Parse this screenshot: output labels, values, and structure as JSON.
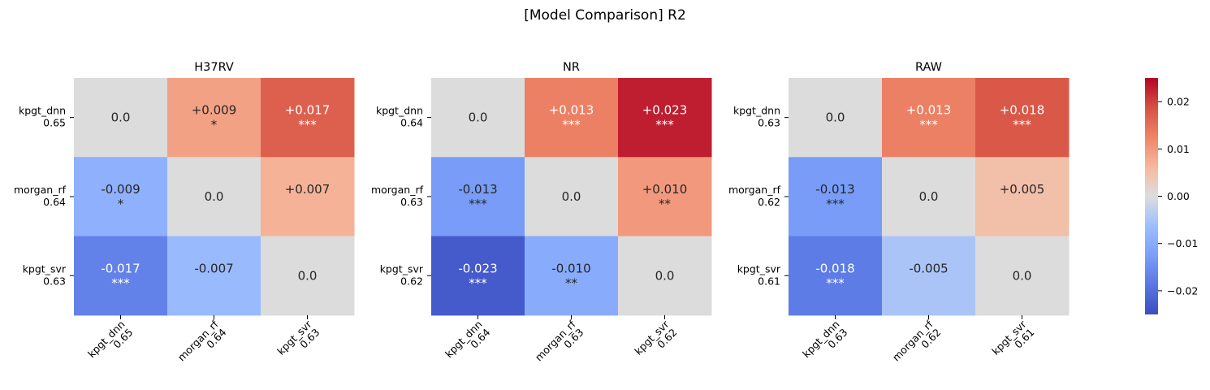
{
  "title": "[Model Comparison] R2",
  "chart_data": {
    "type": "heatmap",
    "colormap": "coolwarm",
    "vmin": -0.025,
    "vmax": 0.025,
    "colorbar_ticks": [
      "0.02",
      "0.01",
      "0.00",
      "−0.01",
      "−0.02"
    ],
    "colorbar_tick_values": [
      0.02,
      0.01,
      0.0,
      -0.01,
      -0.02
    ],
    "panels": [
      {
        "title": "H37RV",
        "row_labels": [
          [
            "kpgt_dnn",
            "0.65"
          ],
          [
            "morgan_rf",
            "0.64"
          ],
          [
            "kpgt_svr",
            "0.63"
          ]
        ],
        "col_labels": [
          [
            "kpgt_dnn",
            "0.65"
          ],
          [
            "morgan_rf",
            "0.64"
          ],
          [
            "kpgt_svr",
            "0.63"
          ]
        ],
        "values": [
          [
            0.0,
            0.009,
            0.017
          ],
          [
            -0.009,
            0.0,
            0.007
          ],
          [
            -0.017,
            -0.007,
            0.0
          ]
        ],
        "value_text": [
          [
            "0.0",
            "+0.009",
            "+0.017"
          ],
          [
            "-0.009",
            "0.0",
            "+0.007"
          ],
          [
            "-0.017",
            "-0.007",
            "0.0"
          ]
        ],
        "stars": [
          [
            "",
            "*",
            "***"
          ],
          [
            "*",
            "",
            ""
          ],
          [
            "***",
            "",
            ""
          ]
        ]
      },
      {
        "title": "NR",
        "row_labels": [
          [
            "kpgt_dnn",
            "0.64"
          ],
          [
            "morgan_rf",
            "0.63"
          ],
          [
            "kpgt_svr",
            "0.62"
          ]
        ],
        "col_labels": [
          [
            "kpgt_dnn",
            "0.64"
          ],
          [
            "morgan_rf",
            "0.63"
          ],
          [
            "kpgt_svr",
            "0.62"
          ]
        ],
        "values": [
          [
            0.0,
            0.013,
            0.023
          ],
          [
            -0.013,
            0.0,
            0.01
          ],
          [
            -0.023,
            -0.01,
            0.0
          ]
        ],
        "value_text": [
          [
            "0.0",
            "+0.013",
            "+0.023"
          ],
          [
            "-0.013",
            "0.0",
            "+0.010"
          ],
          [
            "-0.023",
            "-0.010",
            "0.0"
          ]
        ],
        "stars": [
          [
            "",
            "***",
            "***"
          ],
          [
            "***",
            "",
            "**"
          ],
          [
            "***",
            "**",
            ""
          ]
        ]
      },
      {
        "title": "RAW",
        "row_labels": [
          [
            "kpgt_dnn",
            "0.63"
          ],
          [
            "morgan_rf",
            "0.62"
          ],
          [
            "kpgt_svr",
            "0.61"
          ]
        ],
        "col_labels": [
          [
            "kpgt_dnn",
            "0.63"
          ],
          [
            "morgan_rf",
            "0.62"
          ],
          [
            "kpgt_svr",
            "0.61"
          ]
        ],
        "values": [
          [
            0.0,
            0.013,
            0.018
          ],
          [
            -0.013,
            0.0,
            0.005
          ],
          [
            -0.018,
            -0.005,
            0.0
          ]
        ],
        "value_text": [
          [
            "0.0",
            "+0.013",
            "+0.018"
          ],
          [
            "-0.013",
            "0.0",
            "+0.005"
          ],
          [
            "-0.018",
            "-0.005",
            "0.0"
          ]
        ],
        "stars": [
          [
            "",
            "***",
            "***"
          ],
          [
            "***",
            "",
            ""
          ],
          [
            "***",
            "",
            ""
          ]
        ]
      }
    ],
    "diagonal_color": "#dcdcdc"
  }
}
